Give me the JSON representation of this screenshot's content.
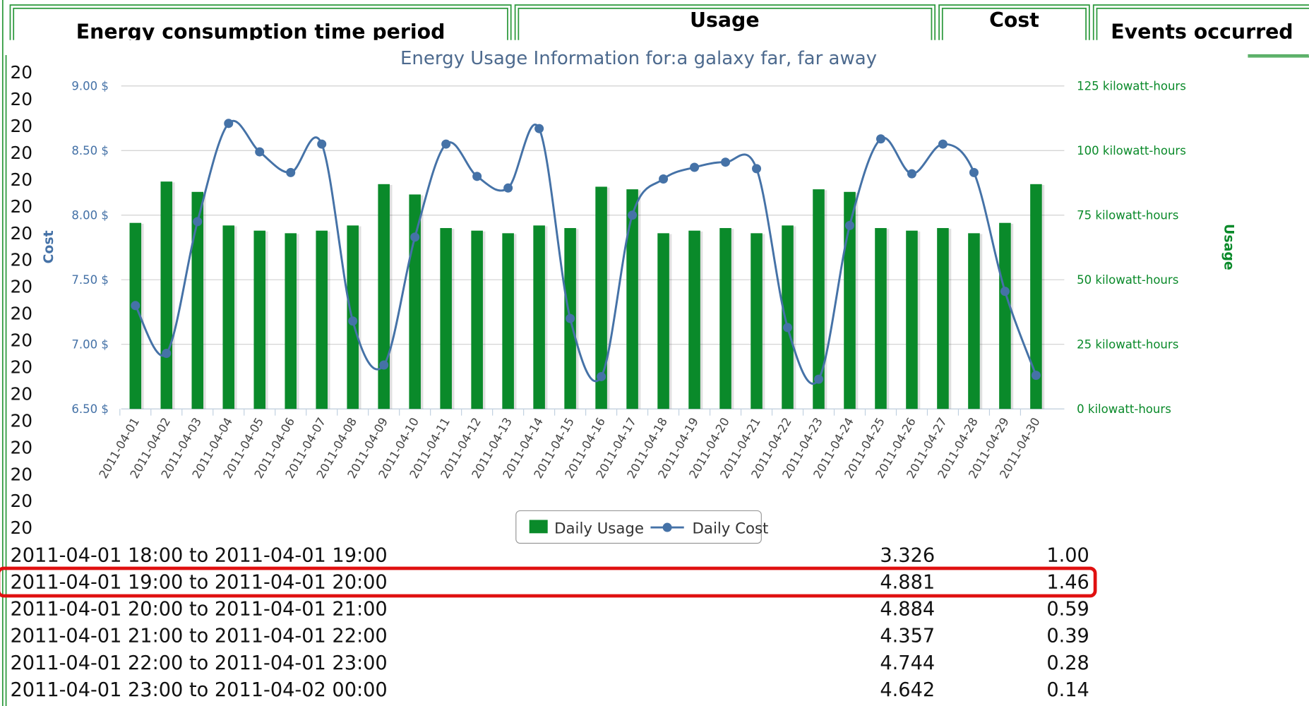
{
  "header": {
    "columns": [
      "Energy consumption time period",
      "Usage",
      "Cost",
      "Events occurred"
    ]
  },
  "side_labels": [
    "20",
    "20",
    "20",
    "20",
    "20",
    "20",
    "20",
    "20",
    "20",
    "20",
    "20",
    "20",
    "20",
    "20",
    "20",
    "20",
    "20",
    "20"
  ],
  "table": {
    "rows": [
      [
        "2011-04-01 18:00 to 2011-04-01 19:00",
        "3.326",
        "1.00"
      ],
      [
        "2011-04-01 19:00 to 2011-04-01 20:00",
        "4.881",
        "1.46"
      ],
      [
        "2011-04-01 20:00 to 2011-04-01 21:00",
        "4.884",
        "0.59"
      ],
      [
        "2011-04-01 21:00 to 2011-04-01 22:00",
        "4.357",
        "0.39"
      ],
      [
        "2011-04-01 22:00 to 2011-04-01 23:00",
        "4.744",
        "0.28"
      ],
      [
        "2011-04-01 23:00 to 2011-04-02 00:00",
        "4.642",
        "0.14"
      ]
    ]
  },
  "chart_data": {
    "type": "bar_line",
    "title": "Energy Usage Information for:a galaxy far, far away",
    "y_label": "Cost",
    "y2_label": "Usage",
    "legend": "bottom",
    "categories": [
      "2011-04-01",
      "2011-04-02",
      "2011-04-03",
      "2011-04-04",
      "2011-04-05",
      "2011-04-06",
      "2011-04-07",
      "2011-04-08",
      "2011-04-09",
      "2011-04-10",
      "2011-04-11",
      "2011-04-12",
      "2011-04-13",
      "2011-04-14",
      "2011-04-15",
      "2011-04-16",
      "2011-04-17",
      "2011-04-18",
      "2011-04-19",
      "2011-04-20",
      "2011-04-21",
      "2011-04-22",
      "2011-04-23",
      "2011-04-24",
      "2011-04-25",
      "2011-04-26",
      "2011-04-27",
      "2011-04-28",
      "2011-04-29",
      "2011-04-30"
    ],
    "series": [
      {
        "name": "Daily Usage",
        "type": "bar",
        "axis": "y2",
        "color": "#0a8a2a",
        "values": [
          72,
          88,
          84,
          71,
          69,
          68,
          69,
          71,
          87,
          83,
          70,
          69,
          68,
          71,
          70,
          86,
          85,
          68,
          69,
          70,
          68,
          71,
          85,
          84,
          70,
          69,
          70,
          68,
          72,
          87
        ]
      },
      {
        "name": "Daily Cost",
        "type": "line",
        "color": "#4572a7",
        "values": [
          7.3,
          6.93,
          7.95,
          8.71,
          8.49,
          8.33,
          8.55,
          7.18,
          6.84,
          7.83,
          8.55,
          8.3,
          8.21,
          8.67,
          7.2,
          6.75,
          8.0,
          8.28,
          8.37,
          8.41,
          8.36,
          7.13,
          6.73,
          7.92,
          8.59,
          8.32,
          8.55,
          8.33,
          7.41,
          6.76
        ]
      }
    ],
    "ylim": [
      6.5,
      9
    ],
    "yticks": [
      {
        "value": 6.5,
        "label": "6.50 $"
      },
      {
        "value": 7,
        "label": "7.00 $"
      },
      {
        "value": 7.5,
        "label": "7.50 $"
      },
      {
        "value": 8,
        "label": "8.00 $"
      },
      {
        "value": 8.5,
        "label": "8.50 $"
      },
      {
        "value": 9,
        "label": "9.00 $"
      }
    ],
    "y2lim": [
      0,
      125
    ],
    "y2ticks": [
      {
        "value": 0,
        "label": "0 kilowatt-hours"
      },
      {
        "value": 25,
        "label": "25 kilowatt-hours"
      },
      {
        "value": 50,
        "label": "50 kilowatt-hours"
      },
      {
        "value": 75,
        "label": "75 kilowatt-hours"
      },
      {
        "value": 100,
        "label": "100 kilowatt-hours"
      },
      {
        "value": 125,
        "label": "125 kilowatt-hours"
      }
    ],
    "grid": true
  }
}
